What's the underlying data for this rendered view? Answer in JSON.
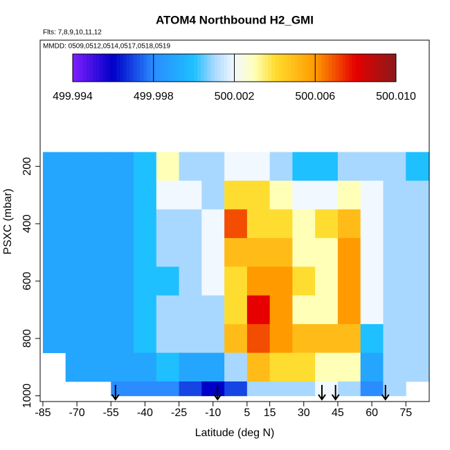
{
  "chart_data": {
    "type": "heatmap",
    "title": "ATOM4 Northbound H2_GMI",
    "subtitle": "Flts: 7,8,9,10,11,12",
    "note": "MMDD: 0509,0512,0514,0517,0518,0519",
    "xlabel": "Latitude (deg N)",
    "ylabel": "PSXC (mbar)",
    "xlim": [
      -86.2,
      85.3
    ],
    "xticks": [
      -85,
      -70,
      -55,
      -40,
      -25,
      -10,
      5,
      15,
      30,
      45,
      60,
      75
    ],
    "ylim": [
      1020,
      -240
    ],
    "yticks": [
      200,
      400,
      600,
      800,
      1000
    ],
    "x_edges": [
      -85,
      -75,
      -65,
      -55,
      -45,
      -35,
      -25,
      -15,
      -5,
      5,
      15,
      25,
      35,
      45,
      55,
      65,
      75,
      85
    ],
    "y_edges": [
      150,
      250,
      350,
      450,
      550,
      650,
      750,
      850,
      950,
      1000
    ],
    "z": [
      [
        499.999,
        499.999,
        499.999,
        499.999,
        500.0,
        500.003,
        500.001,
        500.001,
        500.002,
        500.002,
        500.001,
        500.0,
        500.0,
        500.001,
        500.001,
        500.001,
        500.0
      ],
      [
        499.999,
        499.999,
        499.999,
        499.999,
        500.0,
        500.002,
        500.002,
        500.001,
        500.004,
        500.004,
        500.003,
        500.002,
        500.002,
        500.003,
        500.002,
        500.001,
        500.001
      ],
      [
        499.999,
        499.999,
        499.999,
        499.999,
        500.0,
        500.001,
        500.001,
        500.002,
        500.007,
        500.004,
        500.004,
        500.003,
        500.004,
        500.005,
        500.002,
        500.001,
        500.001
      ],
      [
        499.999,
        499.999,
        499.999,
        499.999,
        500.0,
        500.001,
        500.001,
        500.002,
        500.005,
        500.005,
        500.005,
        500.003,
        500.003,
        500.006,
        500.002,
        500.001,
        500.001
      ],
      [
        499.999,
        499.999,
        499.999,
        499.999,
        500.0,
        500.0,
        500.001,
        500.002,
        500.004,
        500.006,
        500.006,
        500.004,
        500.003,
        500.006,
        500.002,
        500.001,
        500.001
      ],
      [
        499.999,
        499.999,
        499.999,
        499.999,
        500.0,
        500.001,
        500.001,
        500.001,
        500.004,
        500.008,
        500.006,
        500.003,
        500.003,
        500.006,
        500.002,
        500.001,
        500.001
      ],
      [
        499.999,
        499.999,
        499.999,
        499.999,
        500.0,
        500.001,
        500.001,
        500.001,
        500.005,
        500.007,
        500.006,
        500.005,
        500.005,
        500.005,
        500.0,
        500.001,
        500.001
      ],
      [
        null,
        499.999,
        499.999,
        499.999,
        499.999,
        500.0,
        499.999,
        499.999,
        500.001,
        500.005,
        500.004,
        500.004,
        500.003,
        500.003,
        499.999,
        500.001,
        500.001
      ],
      [
        null,
        null,
        null,
        499.998,
        499.998,
        499.998,
        499.997,
        499.996,
        499.997,
        500.001,
        500.001,
        500.001,
        500.002,
        500.001,
        499.998,
        500.001,
        null
      ]
    ],
    "colorscale": [
      {
        "value": 499.994,
        "color": "#7f1fff"
      },
      {
        "value": 499.996,
        "color": "#0000c8"
      },
      {
        "value": 499.998,
        "color": "#2a8cff"
      },
      {
        "value": 500.0,
        "color": "#1ec0ff"
      },
      {
        "value": 500.001,
        "color": "#a8d8ff"
      },
      {
        "value": 500.002,
        "color": "#f2f8ff"
      },
      {
        "value": 500.003,
        "color": "#ffffb8"
      },
      {
        "value": 500.004,
        "color": "#ffdd30"
      },
      {
        "value": 500.006,
        "color": "#ff9a00"
      },
      {
        "value": 500.008,
        "color": "#e60000"
      },
      {
        "value": 500.01,
        "color": "#8b1a1a"
      }
    ],
    "colorbar_ticks": [
      499.994,
      499.998,
      500.002,
      500.006,
      {
        "value": 500.01,
        "label": "500.010"
      }
    ],
    "arrows": [
      -53,
      -8,
      38,
      44,
      66
    ]
  }
}
